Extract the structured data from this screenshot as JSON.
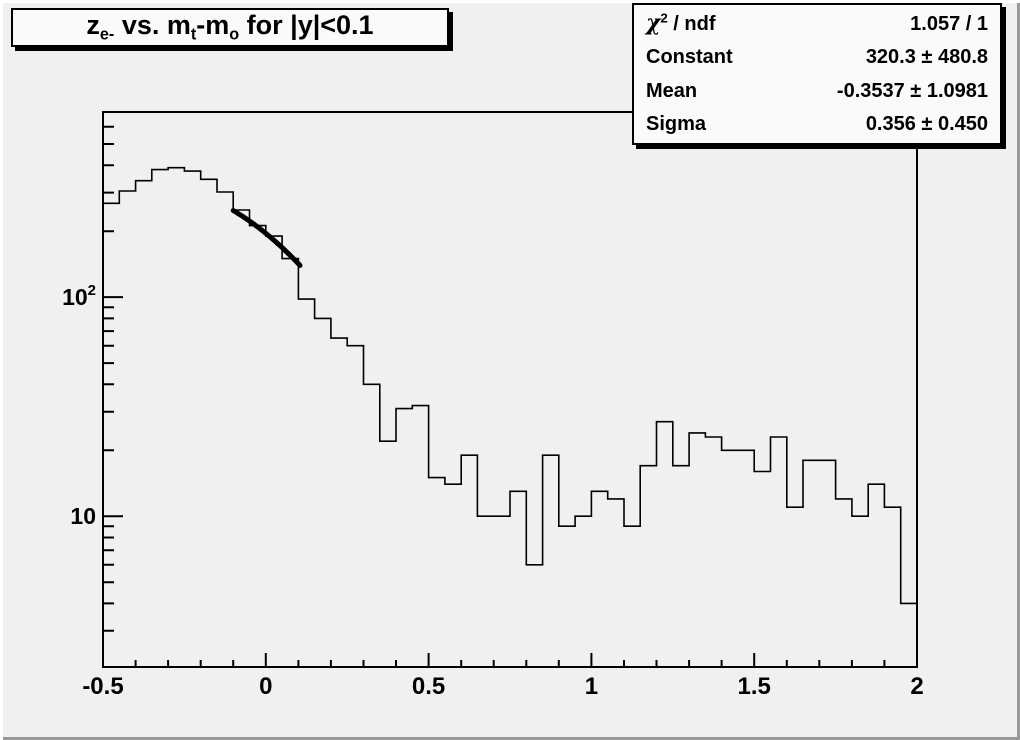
{
  "colors": {
    "canvas_background": "#f1f0ee",
    "pave_fill": "#fafaf8",
    "line": "#000000",
    "bevel_highlight": "#ffffff",
    "bevel_shadow": "#989898"
  },
  "title": {
    "p1": "z",
    "p2": "e-",
    "p3": " vs. m",
    "p4": "t",
    "p5": "-m",
    "p6": "o",
    "p7": " for |y|<0.1"
  },
  "stats": {
    "chi2": {
      "symbol": "χ",
      "power": "2",
      "rest": " / ndf",
      "value": "1.057 / 1"
    },
    "rows": [
      {
        "label": "Constant",
        "value": "320.3 ± 480.8"
      },
      {
        "label": "Mean",
        "value": "-0.3537 ± 1.0981"
      },
      {
        "label": "Sigma",
        "value": "0.356 ± 0.450"
      }
    ]
  },
  "chart_data": {
    "type": "bar",
    "subtype": "step-histogram",
    "title": "z_e- vs. m_t-m_o for |y|<0.1",
    "xlabel": "",
    "ylabel": "",
    "x_min": -0.5,
    "x_max": 2.0,
    "bin_width": 0.05,
    "y_scale": "log",
    "y_min": 2.05,
    "y_max": 700,
    "grid": false,
    "x_ticks": [
      -0.5,
      0,
      0.5,
      1,
      1.5,
      2
    ],
    "x_tick_labels": [
      "-0.5",
      "0",
      "0.5",
      "1",
      "1.5",
      "2"
    ],
    "x_minor_step": 0.1,
    "y_major_ticks": [
      10,
      100
    ],
    "y_major_labels": [
      {
        "base": "10",
        "sup": ""
      },
      {
        "base": "10",
        "sup": "2"
      }
    ],
    "y_minor_ticks": [
      3,
      4,
      5,
      6,
      7,
      8,
      9,
      20,
      30,
      40,
      50,
      60,
      70,
      80,
      90,
      200,
      300,
      400,
      500,
      600
    ],
    "bins": [
      268,
      305,
      340,
      382,
      390,
      376,
      345,
      302,
      250,
      212,
      190,
      150,
      98,
      80,
      65,
      60,
      40,
      22,
      31,
      32,
      15,
      14,
      19,
      10,
      10,
      13,
      6,
      19,
      9,
      10,
      13,
      12,
      9,
      17,
      27,
      17,
      24,
      23,
      20,
      20,
      16,
      23,
      11,
      18,
      18,
      12,
      10,
      14,
      11,
      4
    ],
    "fit": {
      "type": "gaussian",
      "constant": 320.3,
      "mean": -0.3537,
      "sigma": 0.356,
      "chi2": 1.057,
      "ndf": 1,
      "draw_range": [
        -0.1,
        0.105
      ]
    }
  }
}
